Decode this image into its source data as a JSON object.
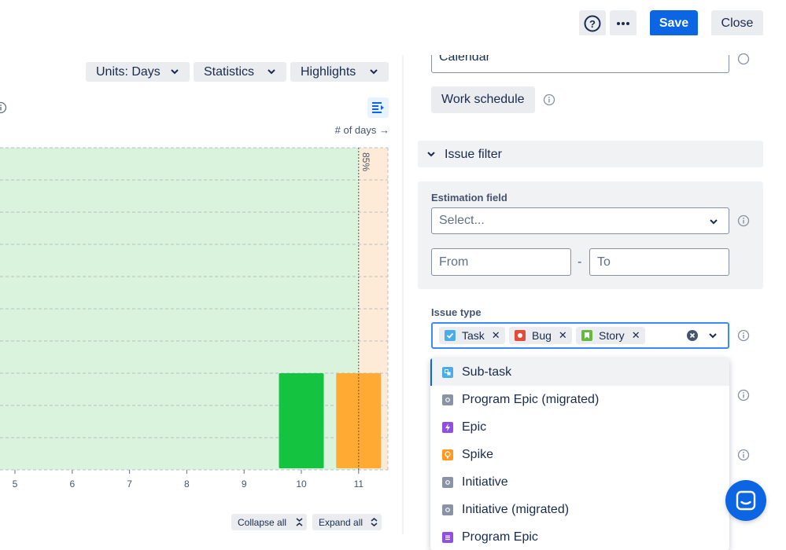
{
  "header": {
    "help_icon": "question-circle-icon",
    "more_icon": "ellipsis-icon",
    "save_label": "Save",
    "close_label": "Close"
  },
  "toolbar": {
    "units_label": "Units: Days",
    "statistics_label": "Statistics",
    "highlights_label": "Highlights"
  },
  "chart_data": {
    "type": "bar",
    "xlabel": "# of days →",
    "categories": [
      "5",
      "6",
      "7",
      "8",
      "9",
      "10",
      "11"
    ],
    "values": [
      0,
      0,
      0,
      0,
      0,
      1,
      1
    ],
    "bar_colors": [
      "#1a7f37",
      "#1a7f37",
      "#1a7f37",
      "#1a7f37",
      "#1a7f37",
      "#14c33f",
      "#ffab33"
    ],
    "percentile_marker": {
      "label": "85%",
      "at": 11
    },
    "grid": true
  },
  "footer": {
    "collapse_label": "Collapse all",
    "expand_label": "Expand all"
  },
  "settings": {
    "calendar_value": "Calendar",
    "work_schedule_label": "Work schedule",
    "issue_filter_label": "Issue filter",
    "estimation_field_label": "Estimation field",
    "estimation_placeholder": "Select...",
    "from_placeholder": "From",
    "to_placeholder": "To",
    "range_separator": "-",
    "issue_type_label": "Issue type",
    "selected_types": [
      {
        "label": "Task",
        "color": "#4bade8"
      },
      {
        "label": "Bug",
        "color": "#e5493a"
      },
      {
        "label": "Story",
        "color": "#63ba3c"
      }
    ]
  },
  "dropdown": {
    "items": [
      {
        "label": "Sub-task",
        "color": "#4bade8"
      },
      {
        "label": "Program Epic (migrated)",
        "color": "#8993a4"
      },
      {
        "label": "Epic",
        "color": "#904ee2"
      },
      {
        "label": "Spike",
        "color": "#ff991f"
      },
      {
        "label": "Initiative",
        "color": "#8993a4"
      },
      {
        "label": "Initiative (migrated)",
        "color": "#8993a4"
      },
      {
        "label": "Program Epic",
        "color": "#904ee2"
      }
    ]
  }
}
